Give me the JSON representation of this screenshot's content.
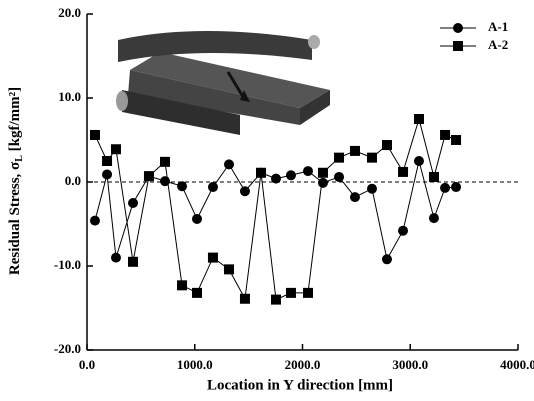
{
  "chart_data": {
    "type": "line",
    "xlabel": "Location in Y direction [mm]",
    "ylabel": {
      "main": "Residual Stress, σ",
      "subscript": "L",
      "unit": " [kgf/mm²]"
    },
    "xlim": [
      0,
      4000
    ],
    "xticks": [
      {
        "value": 0,
        "label": "0.0"
      },
      {
        "value": 1000,
        "label": "1000.0"
      },
      {
        "value": 2000,
        "label": "2000.0"
      },
      {
        "value": 3000,
        "label": "3000.0"
      },
      {
        "value": 4000,
        "label": "4000.0"
      }
    ],
    "ylim": [
      -20,
      20
    ],
    "yticks": [
      {
        "value": -20,
        "label": "-20.0"
      },
      {
        "value": -10,
        "label": "-10.0"
      },
      {
        "value": 0,
        "label": "0.0"
      },
      {
        "value": 10,
        "label": "10.0"
      },
      {
        "value": 20,
        "label": "20.0"
      }
    ],
    "x": [
      74,
      186,
      269,
      427,
      575,
      724,
      882,
      1021,
      1169,
      1318,
      1466,
      1615,
      1754,
      1893,
      2051,
      2190,
      2339,
      2487,
      2645,
      2784,
      2933,
      3081,
      3220,
      3323,
      3425
    ],
    "series": [
      {
        "name": "A-1",
        "marker": "circle",
        "color": "#000000",
        "values": [
          -4.6,
          0.9,
          -9.0,
          -2.5,
          0.7,
          0.1,
          -0.5,
          -4.4,
          -0.6,
          2.1,
          -1.1,
          1.1,
          0.4,
          0.8,
          1.3,
          -0.1,
          0.6,
          -1.8,
          -0.8,
          -9.2,
          -5.8,
          2.5,
          -4.3,
          -0.7,
          -0.6
        ]
      },
      {
        "name": "A-2",
        "marker": "square",
        "color": "#000000",
        "values": [
          5.6,
          2.5,
          3.9,
          -9.5,
          0.7,
          2.4,
          -12.3,
          -13.2,
          -9.0,
          -10.4,
          -13.9,
          1.1,
          -14.0,
          -13.2,
          -13.2,
          1.1,
          2.9,
          3.7,
          2.9,
          4.4,
          1.2,
          7.5,
          0.6,
          5.6,
          5.0
        ]
      }
    ],
    "zero_line": true,
    "legend": "top-right"
  }
}
